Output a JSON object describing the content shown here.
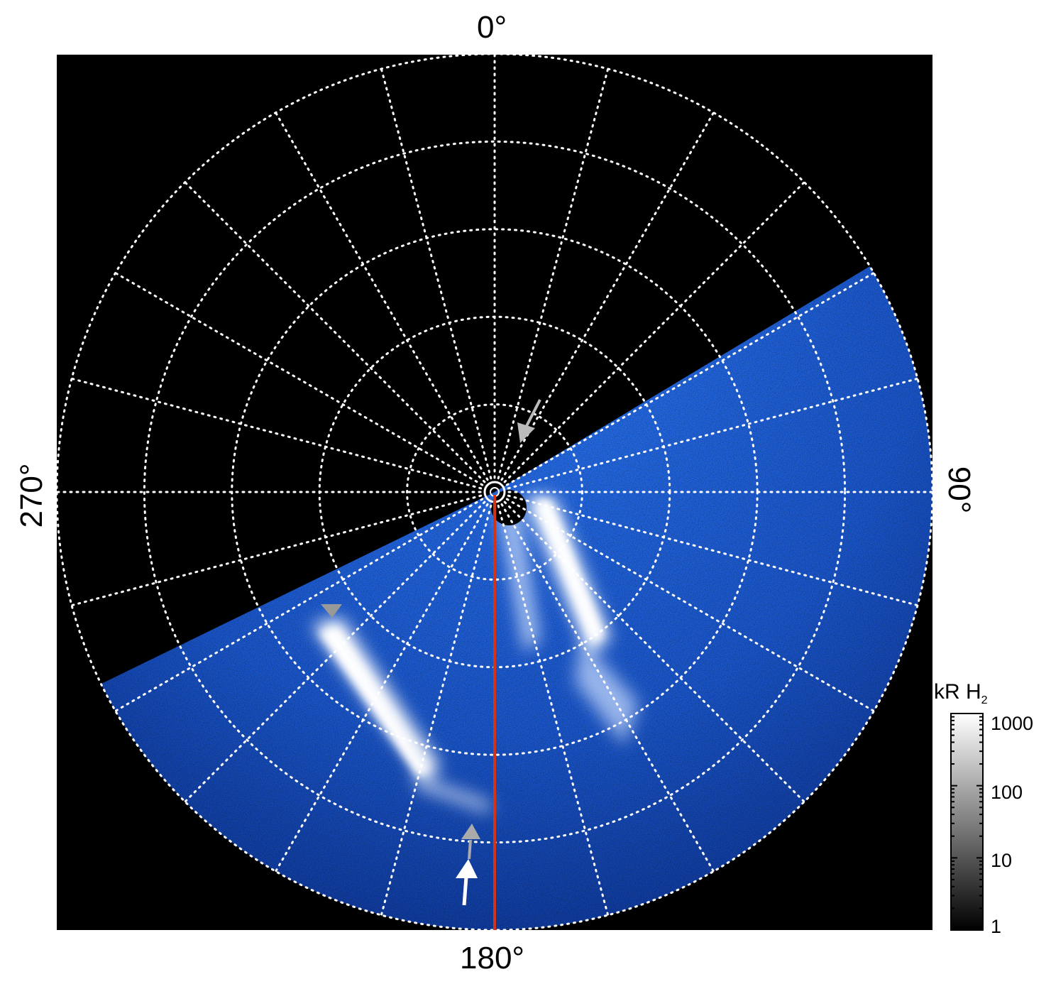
{
  "labels": {
    "top": "0°",
    "bottom": "180°",
    "left": "270°",
    "right": "90°"
  },
  "colorbar": {
    "title": "kR H",
    "title_sub": "2",
    "ticks": [
      "1000",
      "100",
      "10",
      "1"
    ],
    "tick_values": [
      1000,
      100,
      10,
      1
    ],
    "scale": "log",
    "range": [
      1,
      1000
    ]
  },
  "colors": {
    "background": "#000000",
    "aurora_dark": "#0a2a7a",
    "aurora_mid": "#1f64e0",
    "aurora_bright": "#ffffff",
    "grid": "#ffffff",
    "meridian_line": "#d2341a",
    "arrow_white": "#ffffff",
    "arrow_gray": "#b8b8b8"
  },
  "grid": {
    "ring_count": 5,
    "meridian_step_deg": 15
  }
}
